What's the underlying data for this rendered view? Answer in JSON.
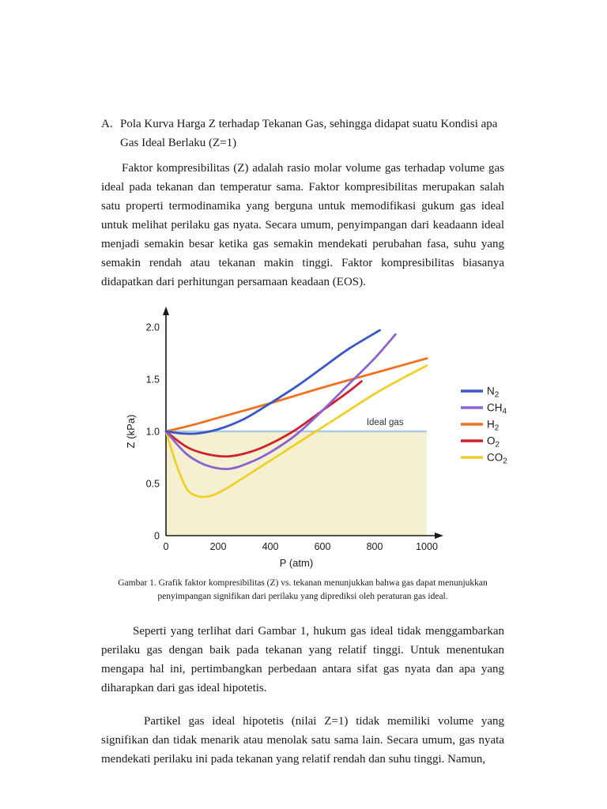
{
  "page": {
    "heading": {
      "label": "A.",
      "text": "Pola Kurva Harga Z terhadap Tekanan Gas, sehingga didapat suatu Kondisi apa Gas Ideal Berlaku (Z=1)"
    },
    "paragraphs": [
      "Faktor kompresibilitas (Z) adalah rasio molar volume gas terhadap volume gas ideal pada tekanan dan temperatur sama. Faktor kompresibilitas merupakan salah satu properti termodinamika yang berguna untuk memodifikasi gukum gas ideal untuk melihat perilaku gas nyata. Secara umum, penyimpangan dari keadaann ideal menjadi semakin besar ketika gas semakin mendekati perubahan fasa, suhu yang semakin rendah atau tekanan makin tinggi. Faktor kompresibilitas biasanya didapatkan dari perhitungan persamaan keadaan (EOS).",
      "Seperti yang terlihat dari Gambar 1, hukum gas ideal tidak menggambarkan perilaku gas dengan baik pada tekanan yang relatif tinggi. Untuk menentukan mengapa hal ini, pertimbangkan perbedaan antara sifat gas nyata dan apa yang diharapkan dari gas ideal hipotetis.",
      "Partikel gas ideal hipotetis (nilai Z=1) tidak memiliki volume yang signifikan dan tidak menarik atau menolak satu sama lain. Secara umum, gas nyata mendekati perilaku ini pada tekanan yang relatif rendah dan suhu tinggi. Namun,"
    ]
  },
  "figure": {
    "caption": "Gambar 1. Grafik faktor kompresibilitas (Z) vs. tekanan menunjukkan bahwa gas dapat menunjukkan penyimpangan signifikan dari perilaku yang diprediksi oleh peraturan gas ideal."
  },
  "chart_data": {
    "type": "line",
    "title": "",
    "xlabel": "P (atm)",
    "ylabel": "Z (kPa)",
    "xlim": [
      0,
      1000
    ],
    "ylim": [
      0,
      2.0
    ],
    "x_ticks": [
      0,
      200,
      400,
      600,
      800,
      1000
    ],
    "x_tick_labels": [
      "0",
      "200",
      "400",
      "600",
      "800",
      "1000"
    ],
    "y_ticks": [
      0,
      0.5,
      1.0,
      1.5,
      2.0
    ],
    "y_tick_labels": [
      "0",
      "0.5",
      "1.0",
      "1.5",
      "2.0"
    ],
    "grid": false,
    "legend_position": "right",
    "axis_color": "#1a1a1a",
    "ideal_line": {
      "label": "Ideal gas",
      "value": 1.0,
      "color": "#a9c9e9",
      "label_color": "#333333"
    },
    "band": {
      "color": "#f5f0cf",
      "from": 0,
      "to": 1.0,
      "x_from": 0,
      "x_to": 1000
    },
    "series": [
      {
        "name": "N2",
        "label_base": "N",
        "label_sub": "2",
        "color": "#3a57c7",
        "points": [
          [
            0,
            1.0
          ],
          [
            60,
            0.98
          ],
          [
            120,
            0.98
          ],
          [
            200,
            1.02
          ],
          [
            300,
            1.12
          ],
          [
            400,
            1.27
          ],
          [
            500,
            1.43
          ],
          [
            600,
            1.61
          ],
          [
            700,
            1.79
          ],
          [
            820,
            1.97
          ]
        ]
      },
      {
        "name": "CH4",
        "label_base": "CH",
        "label_sub": "4",
        "color": "#8a63d2",
        "points": [
          [
            0,
            1.0
          ],
          [
            80,
            0.78
          ],
          [
            160,
            0.67
          ],
          [
            240,
            0.64
          ],
          [
            320,
            0.7
          ],
          [
            400,
            0.8
          ],
          [
            500,
            0.97
          ],
          [
            600,
            1.2
          ],
          [
            700,
            1.45
          ],
          [
            800,
            1.7
          ],
          [
            880,
            1.93
          ]
        ]
      },
      {
        "name": "H2",
        "label_base": "H",
        "label_sub": "2",
        "color": "#ef7122",
        "points": [
          [
            0,
            1.0
          ],
          [
            100,
            1.06
          ],
          [
            200,
            1.13
          ],
          [
            400,
            1.27
          ],
          [
            600,
            1.42
          ],
          [
            800,
            1.56
          ],
          [
            1000,
            1.7
          ]
        ]
      },
      {
        "name": "O2",
        "label_base": "O",
        "label_sub": "2",
        "color": "#cf2030",
        "points": [
          [
            0,
            1.0
          ],
          [
            80,
            0.85
          ],
          [
            160,
            0.78
          ],
          [
            240,
            0.76
          ],
          [
            320,
            0.8
          ],
          [
            400,
            0.88
          ],
          [
            500,
            1.02
          ],
          [
            600,
            1.2
          ],
          [
            700,
            1.38
          ],
          [
            750,
            1.48
          ]
        ]
      },
      {
        "name": "CO2",
        "label_base": "CO",
        "label_sub": "2",
        "color": "#efd02b",
        "points": [
          [
            0,
            1.0
          ],
          [
            40,
            0.68
          ],
          [
            80,
            0.45
          ],
          [
            120,
            0.38
          ],
          [
            170,
            0.38
          ],
          [
            230,
            0.45
          ],
          [
            300,
            0.56
          ],
          [
            400,
            0.72
          ],
          [
            500,
            0.88
          ],
          [
            600,
            1.04
          ],
          [
            700,
            1.2
          ],
          [
            800,
            1.36
          ],
          [
            900,
            1.5
          ],
          [
            1000,
            1.63
          ]
        ]
      }
    ]
  }
}
